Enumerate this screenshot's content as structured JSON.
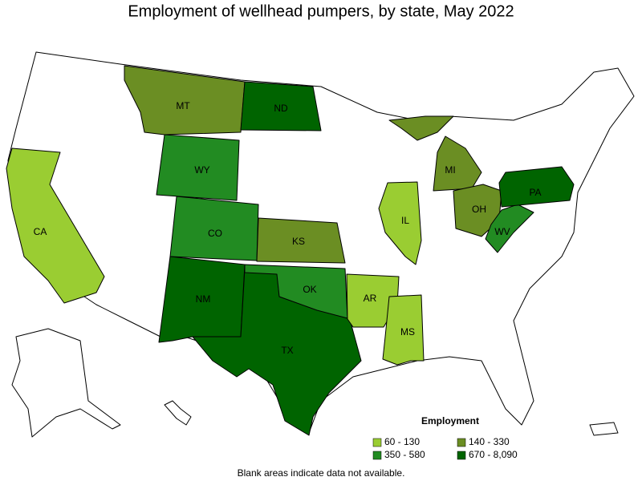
{
  "title": "Employment of wellhead pumpers, by state, May 2022",
  "legend": {
    "title": "Employment",
    "items": [
      {
        "label": "60 - 130",
        "color": "#9acd32"
      },
      {
        "label": "140 - 330",
        "color": "#6b8e23"
      },
      {
        "label": "350 - 580",
        "color": "#228b22"
      },
      {
        "label": "670 - 8,090",
        "color": "#006400"
      }
    ]
  },
  "states": [
    {
      "label": "CA",
      "color": "#9acd32"
    },
    {
      "label": "MT",
      "color": "#6b8e23"
    },
    {
      "label": "ND",
      "color": "#006400"
    },
    {
      "label": "WY",
      "color": "#228b22"
    },
    {
      "label": "CO",
      "color": "#228b22"
    },
    {
      "label": "KS",
      "color": "#6b8e23"
    },
    {
      "label": "NM",
      "color": "#006400"
    },
    {
      "label": "TX",
      "color": "#006400"
    },
    {
      "label": "OK",
      "color": "#228b22"
    },
    {
      "label": "AR",
      "color": "#9acd32"
    },
    {
      "label": "MS",
      "color": "#9acd32"
    },
    {
      "label": "IL",
      "color": "#9acd32"
    },
    {
      "label": "MI",
      "color": "#6b8e23"
    },
    {
      "label": "OH",
      "color": "#6b8e23"
    },
    {
      "label": "WV",
      "color": "#228b22"
    },
    {
      "label": "PA",
      "color": "#006400"
    }
  ],
  "note": "Blank areas indicate data not available."
}
